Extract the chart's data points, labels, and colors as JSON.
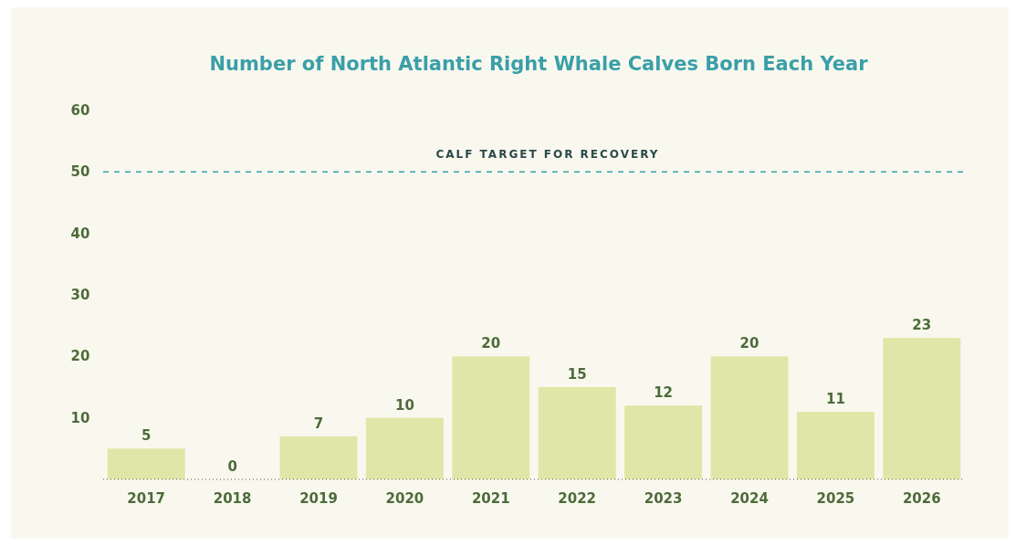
{
  "chart_data": {
    "type": "bar",
    "title": "Number of North Atlantic Right Whale Calves Born Each Year",
    "categories": [
      "2017",
      "2018",
      "2019",
      "2020",
      "2021",
      "2022",
      "2023",
      "2024",
      "2025",
      "2026"
    ],
    "values": [
      5,
      0,
      7,
      10,
      20,
      15,
      12,
      20,
      11,
      23
    ],
    "color": "#dfe7a8",
    "ylim": [
      0,
      60
    ],
    "yticks": [
      10,
      20,
      30,
      40,
      50,
      60
    ],
    "grid": false,
    "data_labels": true,
    "ref_lines": [
      {
        "axis": "y",
        "value": 50,
        "label": "CALF TARGET FOR RECOVERY",
        "color": "#3a9fa8",
        "line_style": "dashed"
      }
    ]
  }
}
